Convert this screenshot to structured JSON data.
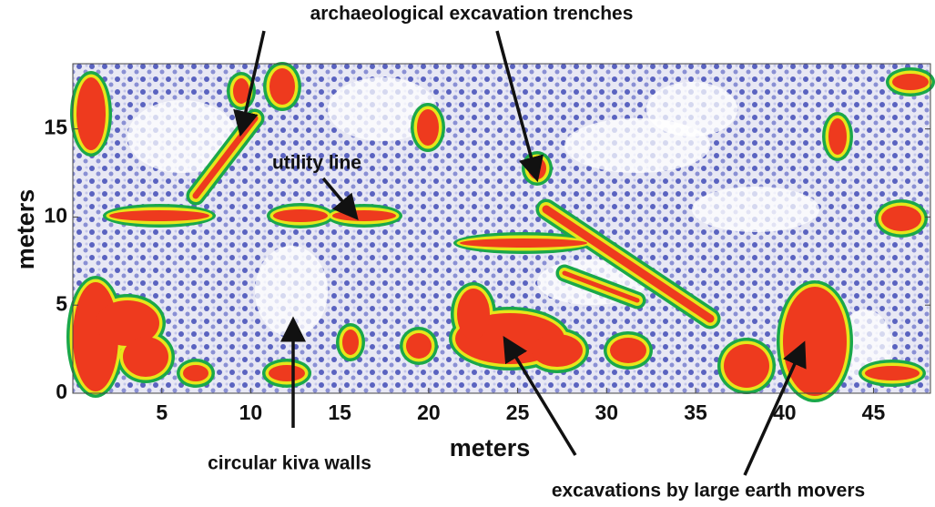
{
  "chart_data": {
    "type": "map",
    "x_label": "meters",
    "y_label": "meters",
    "xlim": [
      0,
      48.2
    ],
    "ylim": [
      0,
      18.7
    ],
    "xticks": [
      5,
      10,
      15,
      20,
      25,
      30,
      35,
      40,
      45
    ],
    "yticks": [
      0,
      5,
      10,
      15
    ],
    "annotations": [
      "archaeological excavation trenches",
      "utility line",
      "circular kiva walls",
      "excavations by large earth movers"
    ]
  }
}
